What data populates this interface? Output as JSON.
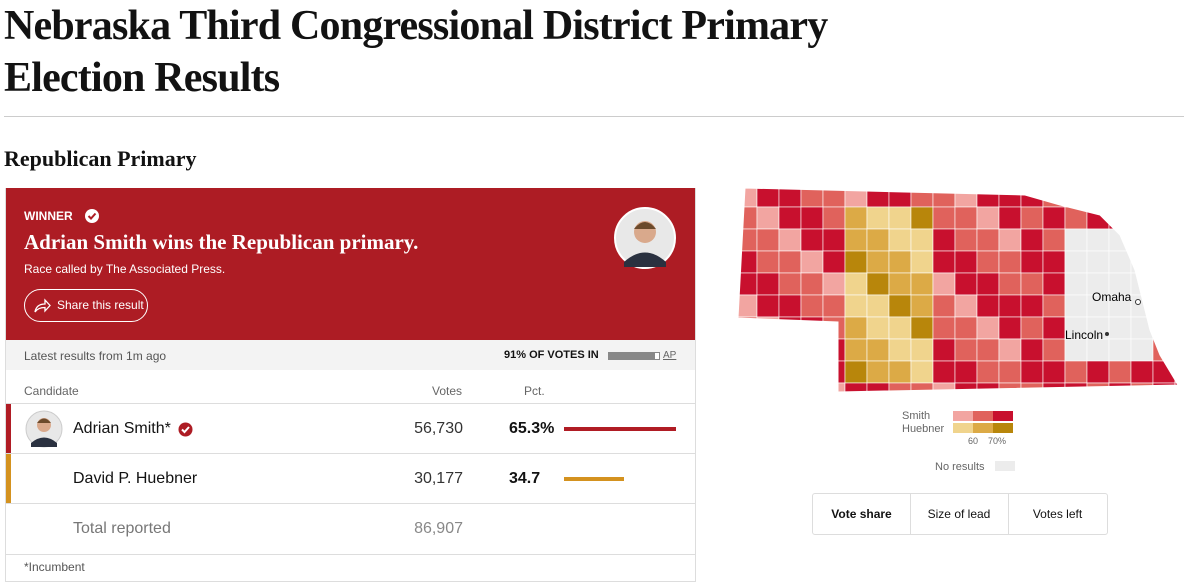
{
  "header": {
    "title": "Nebraska Third Congressional District Primary Election Results"
  },
  "race": {
    "title": "Republican Primary",
    "banner": {
      "status": "WINNER",
      "headline": "Adrian Smith wins the Republican primary.",
      "note": "Race called by The Associated Press.",
      "share": "Share this result"
    },
    "updated": "Latest results from 1m ago",
    "reporting": {
      "label": "91% OF VOTES IN",
      "pct": 91,
      "source": "AP"
    },
    "table": {
      "columns": [
        "Candidate",
        "Votes",
        "Pct."
      ],
      "rows": [
        {
          "name": "Adrian Smith*",
          "votes": "56,730",
          "pct": 65.3,
          "pct_label": "65.3%",
          "color": "#b01c24"
        },
        {
          "name": "David P. Huebner",
          "votes": "30,177",
          "pct": 34.7,
          "color": "#d4921f"
        }
      ],
      "total": {
        "label": "Total reported",
        "votes": "86,907"
      }
    },
    "footnote": "*Incumbent"
  },
  "map": {
    "places": [
      "Omaha",
      "Lincoln"
    ],
    "legend": {
      "candidates": [
        "Smith",
        "Huebner"
      ],
      "ticks": [
        "60",
        "70%"
      ],
      "no_results": "No results"
    },
    "views": [
      "Vote share",
      "Size of lead",
      "Votes left"
    ]
  }
}
